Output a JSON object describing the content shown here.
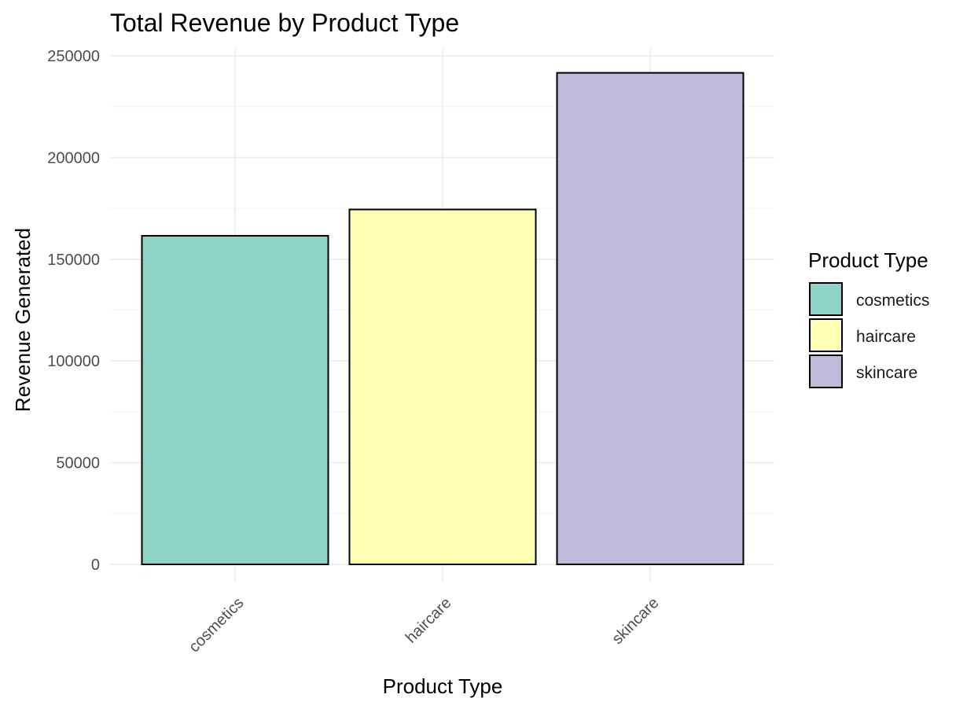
{
  "chart_data": {
    "type": "bar",
    "title": "Total Revenue by Product Type",
    "xlabel": "Product Type",
    "ylabel": "Revenue Generated",
    "categories": [
      "cosmetics",
      "haircare",
      "skincare"
    ],
    "values": [
      161521,
      174455,
      241628
    ],
    "colors": [
      "#8DD3C7",
      "#FFFFB3",
      "#BEBADA"
    ],
    "ylim": [
      0,
      250000
    ],
    "yticks": [
      0,
      50000,
      100000,
      150000,
      200000,
      250000
    ],
    "ytick_labels": [
      "0",
      "50000",
      "100000",
      "150000",
      "200000",
      "250000"
    ],
    "grid": true,
    "legend": {
      "title": "Product Type",
      "position": "right",
      "items": [
        "cosmetics",
        "haircare",
        "skincare"
      ]
    }
  }
}
